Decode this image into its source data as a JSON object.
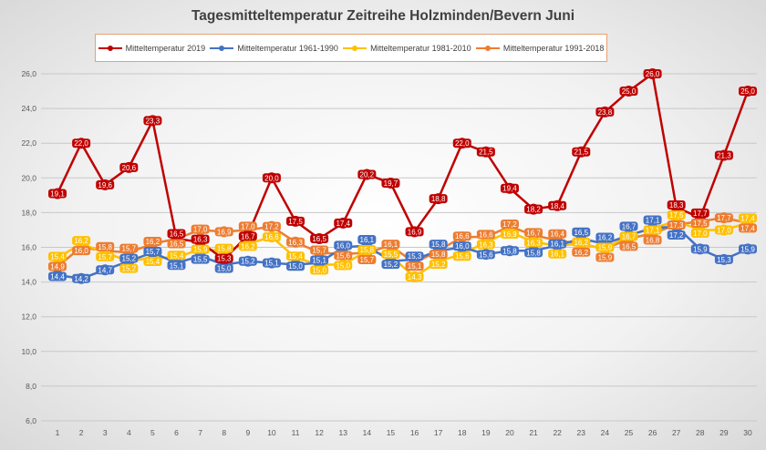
{
  "chart_data": {
    "type": "line",
    "title": "Tagesmitteltemperatur Zeitreihe Holzminden/Bevern Juni",
    "x": [
      1,
      2,
      3,
      4,
      5,
      6,
      7,
      8,
      9,
      10,
      11,
      12,
      13,
      14,
      15,
      16,
      17,
      18,
      19,
      20,
      21,
      22,
      23,
      24,
      25,
      26,
      27,
      28,
      29,
      30
    ],
    "ylim": [
      6,
      26
    ],
    "yticks": [
      "6,0",
      "8,0",
      "10,0",
      "12,0",
      "14,0",
      "16,0",
      "18,0",
      "20,0",
      "22,0",
      "24,0",
      "26,0"
    ],
    "grid": true,
    "legend_position": "top",
    "series": [
      {
        "name": "Mitteltemperatur 2019",
        "color": "#c00000",
        "values": [
          19.1,
          22.0,
          19.6,
          20.6,
          23.3,
          16.5,
          16.3,
          15.3,
          16.7,
          20.0,
          17.5,
          16.5,
          17.4,
          20.2,
          19.7,
          16.9,
          18.8,
          22.0,
          21.5,
          19.4,
          18.2,
          18.4,
          21.5,
          23.8,
          25.0,
          26.0,
          18.3,
          17.7,
          21.3,
          25.0
        ]
      },
      {
        "name": "Mitteltemperatur 1961-1990",
        "color": "#4472c4",
        "values": [
          14.4,
          14.2,
          14.7,
          15.2,
          15.7,
          15.1,
          15.5,
          15.0,
          15.2,
          15.1,
          15.0,
          15.1,
          16.0,
          16.1,
          15.2,
          15.3,
          15.8,
          16.0,
          15.6,
          15.8,
          15.8,
          16.1,
          16.5,
          16.2,
          16.7,
          17.1,
          17.2,
          15.9,
          15.3,
          15.9
        ]
      },
      {
        "name": "Mitteltemperatur 1981-2010",
        "color": "#ffc000",
        "values": [
          15.4,
          16.2,
          15.7,
          15.2,
          15.4,
          15.4,
          15.9,
          15.8,
          16.2,
          16.6,
          15.4,
          15.0,
          15.0,
          15.8,
          15.5,
          14.3,
          15.2,
          15.6,
          16.3,
          16.9,
          16.3,
          16.1,
          16.2,
          15.9,
          16.7,
          17.1,
          17.5,
          17.0,
          17.0,
          17.4
        ]
      },
      {
        "name": "Mitteltemperatur 1991-2018",
        "color": "#ed7d31",
        "values": [
          14.9,
          16.0,
          15.8,
          15.7,
          16.2,
          16.5,
          17.0,
          16.9,
          17.0,
          17.2,
          16.3,
          15.7,
          15.6,
          15.7,
          16.1,
          15.1,
          15.8,
          16.6,
          16.6,
          17.2,
          16.7,
          16.4,
          16.2,
          15.9,
          16.5,
          16.8,
          17.3,
          17.5,
          17.7,
          17.4
        ]
      }
    ]
  }
}
